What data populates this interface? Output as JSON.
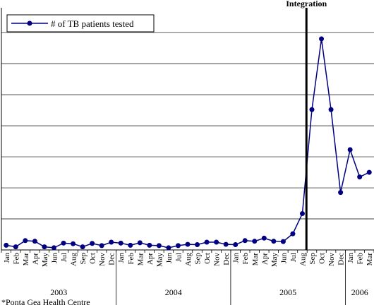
{
  "chart_data": {
    "type": "line",
    "title": "",
    "xlabel": "",
    "ylabel": "",
    "grid": true,
    "legend_position": "top-left",
    "categories": [
      "Jan",
      "Feb",
      "Mar",
      "Apr",
      "May",
      "Jun",
      "Jul",
      "Aug",
      "Sep",
      "Oct",
      "Nov",
      "Dec",
      "Jan",
      "Feb",
      "Mar",
      "Apr",
      "May",
      "Jun",
      "Jul",
      "Aug",
      "Sep",
      "Oct",
      "Nov",
      "Dec",
      "Jan",
      "Feb",
      "Mar",
      "Apr",
      "May",
      "Jun",
      "Jul",
      "Aug",
      "Sep",
      "Oct",
      "Nov",
      "Dec",
      "Jan",
      "Feb",
      "Mar"
    ],
    "years": [
      {
        "label": "2003",
        "start": 0,
        "count": 12
      },
      {
        "label": "2004",
        "start": 12,
        "count": 12
      },
      {
        "label": "2005",
        "start": 24,
        "count": 12
      },
      {
        "label": "2006",
        "start": 36,
        "count": 3
      }
    ],
    "ylim": [
      0,
      7.8
    ],
    "series": [
      {
        "name": "# of TB patients tested",
        "color": "#000080",
        "values": [
          0.15,
          0.1,
          0.3,
          0.28,
          0.1,
          0.07,
          0.22,
          0.2,
          0.1,
          0.21,
          0.14,
          0.25,
          0.22,
          0.15,
          0.23,
          0.15,
          0.14,
          0.07,
          0.14,
          0.18,
          0.17,
          0.25,
          0.25,
          0.18,
          0.17,
          0.3,
          0.28,
          0.38,
          0.28,
          0.27,
          0.52,
          1.17,
          4.52,
          6.8,
          4.52,
          1.85,
          3.23,
          2.35,
          2.5
        ]
      }
    ],
    "annotations": [
      {
        "label": "Integration",
        "x_after_index": 31
      }
    ]
  },
  "footnote": "*Ponta Gea Health Centre"
}
